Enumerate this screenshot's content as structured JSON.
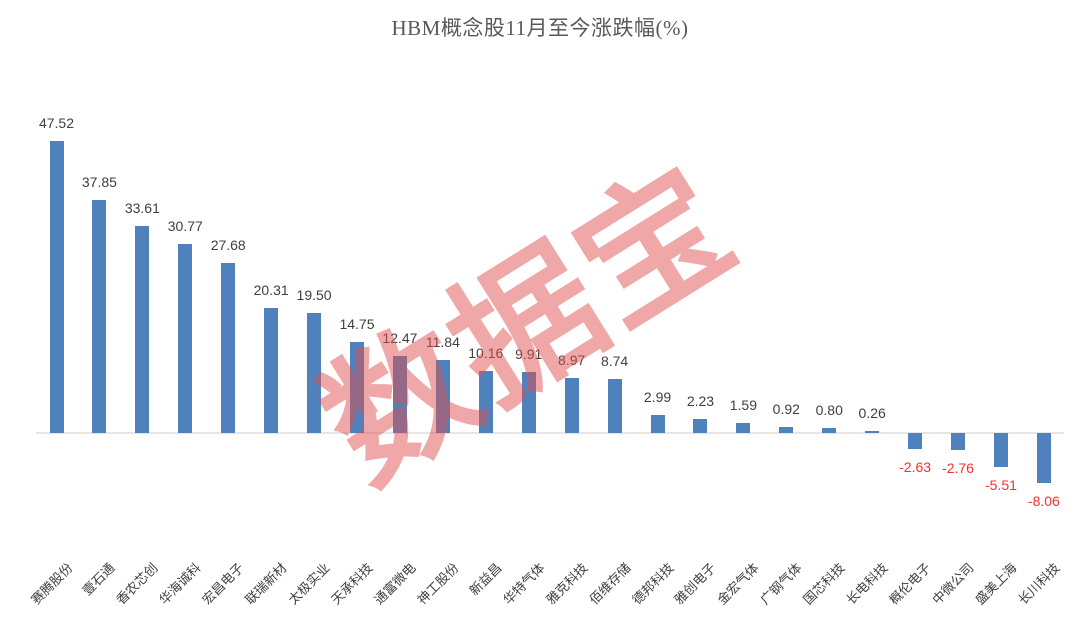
{
  "chart_data": {
    "type": "bar",
    "title": "HBM概念股11月至今涨跌幅(%)",
    "xlabel": "",
    "ylabel": "",
    "categories": [
      "赛腾股份",
      "壹石通",
      "香农芯创",
      "华海诚科",
      "宏昌电子",
      "联瑞新材",
      "太极实业",
      "天承科技",
      "通富微电",
      "神工股份",
      "新益昌",
      "华特气体",
      "雅克科技",
      "佰维存储",
      "德邦科技",
      "雅创电子",
      "金宏气体",
      "广钢气体",
      "国芯科技",
      "长电科技",
      "概伦电子",
      "中微公司",
      "盛美上海",
      "长川科技"
    ],
    "values": [
      47.52,
      37.85,
      33.61,
      30.77,
      27.68,
      20.31,
      19.5,
      14.75,
      12.47,
      11.84,
      10.16,
      9.91,
      8.97,
      8.74,
      2.99,
      2.23,
      1.59,
      0.92,
      0.8,
      0.26,
      -2.63,
      -2.76,
      -5.51,
      -8.06
    ],
    "ylim": [
      -10,
      50
    ],
    "grid": false,
    "legend": false,
    "data_labels": "outside-end, two decimals",
    "colors": {
      "bar": "#4f81bd",
      "positive_label": "#404040",
      "negative_label": "#fe2c2c",
      "category_label": "#404040",
      "title": "#595959",
      "axis_line": "#e6e6e6"
    },
    "watermark": {
      "text": "数据宝",
      "color": "rgba(224,80,80,0.5)",
      "rotation_deg": -32
    }
  }
}
